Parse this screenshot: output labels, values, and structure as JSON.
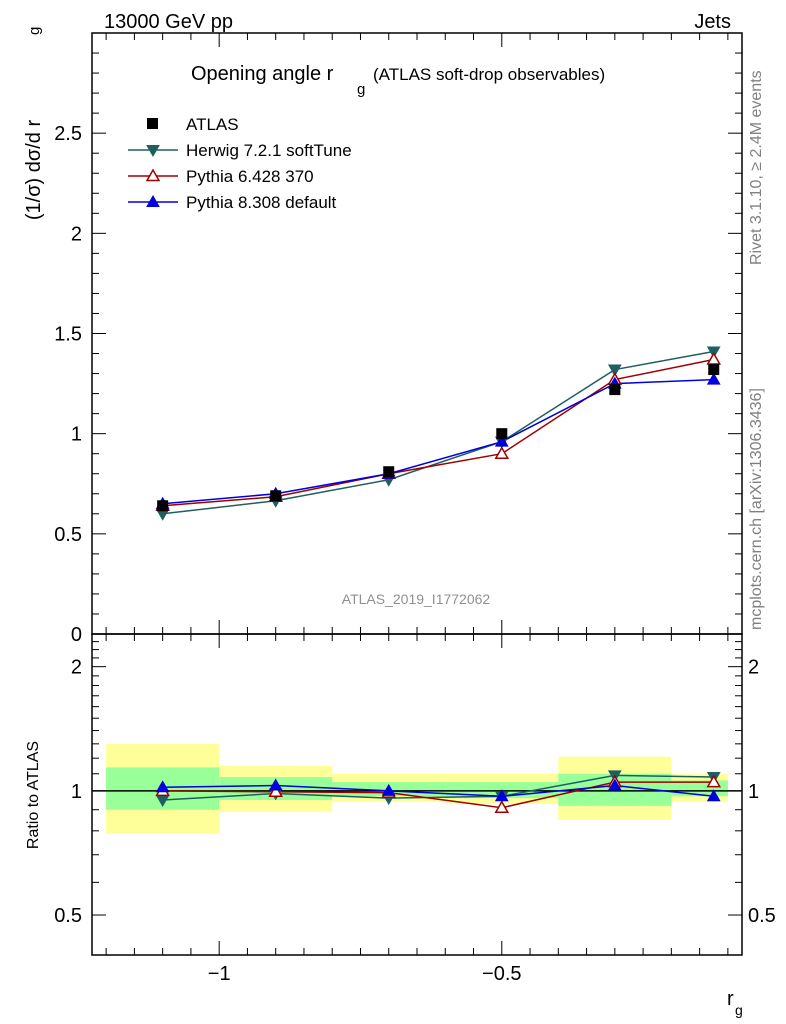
{
  "header": {
    "left": "13000 GeV pp",
    "right": "Jets"
  },
  "side_text": {
    "top": "Rivet 3.1.10, ≥ 2.4M events",
    "bottom": "mcplots.cern.ch [arXiv:1306.3436]"
  },
  "watermark": "ATLAS_2019_I1772062",
  "chart_data": [
    {
      "type": "line",
      "title_main": "Opening angle r",
      "title_sub": "g",
      "title_paren": "(ATLAS soft-drop observables)",
      "ylabel": "(1/σ) dσ/d r",
      "ylabel_sub": "g",
      "xlim": [
        -1.225,
        -0.075
      ],
      "ylim": [
        0,
        3.0
      ],
      "yticks": [
        {
          "v": 0.5,
          "label": "0.5"
        },
        {
          "v": 1.0,
          "label": "1"
        },
        {
          "v": 1.5,
          "label": "1.5"
        },
        {
          "v": 2.0,
          "label": "2"
        },
        {
          "v": 2.5,
          "label": "2.5"
        }
      ],
      "x": [
        -1.1,
        -0.9,
        -0.7,
        -0.5,
        -0.3,
        -0.125
      ],
      "data": {
        "name": "ATLAS",
        "values": [
          0.64,
          0.69,
          0.81,
          1.0,
          1.22,
          1.32
        ]
      },
      "series": [
        {
          "name": "Herwig 7.2.1 softTune",
          "color": "#1f5f5f",
          "marker": "triangle-down-filled",
          "values": [
            0.6,
            0.665,
            0.77,
            0.96,
            1.32,
            1.41
          ]
        },
        {
          "name": "Pythia 6.428 370",
          "color": "#a00000",
          "marker": "triangle-up-open",
          "values": [
            0.64,
            0.685,
            0.8,
            0.9,
            1.27,
            1.37
          ]
        },
        {
          "name": "Pythia 8.308 default",
          "color": "#0000dd",
          "marker": "triangle-up-filled",
          "values": [
            0.65,
            0.7,
            0.8,
            0.96,
            1.25,
            1.27
          ]
        }
      ],
      "legend_position": "top-left"
    },
    {
      "type": "line",
      "ylabel": "Ratio to ATLAS",
      "xlabel": "r",
      "xlabel_sub": "g",
      "xlim": [
        -1.225,
        -0.075
      ],
      "ylim": [
        0.4,
        2.4
      ],
      "log_y": true,
      "yticks": [
        {
          "v": 0.5,
          "label": "0.5"
        },
        {
          "v": 1.0,
          "label": "1"
        },
        {
          "v": 2.0,
          "label": "2"
        }
      ],
      "xticks": [
        {
          "v": -1.0,
          "label": "−1"
        },
        {
          "v": -0.5,
          "label": "−0.5"
        }
      ],
      "bands": [
        {
          "x0": -1.2,
          "x1": -1.0,
          "yellow": [
            0.79,
            1.3
          ],
          "green": [
            0.9,
            1.14
          ]
        },
        {
          "x0": -1.0,
          "x1": -0.8,
          "yellow": [
            0.89,
            1.15
          ],
          "green": [
            0.95,
            1.08
          ]
        },
        {
          "x0": -0.8,
          "x1": -0.6,
          "yellow": [
            0.94,
            1.1
          ],
          "green": [
            0.97,
            1.05
          ]
        },
        {
          "x0": -0.6,
          "x1": -0.4,
          "yellow": [
            0.93,
            1.1
          ],
          "green": [
            0.96,
            1.05
          ]
        },
        {
          "x0": -0.4,
          "x1": -0.2,
          "yellow": [
            0.85,
            1.21
          ],
          "green": [
            0.92,
            1.1
          ]
        },
        {
          "x0": -0.2,
          "x1": -0.1,
          "yellow": [
            0.94,
            1.1
          ],
          "green": [
            0.97,
            1.06
          ]
        }
      ],
      "x": [
        -1.1,
        -0.9,
        -0.7,
        -0.5,
        -0.3,
        -0.125
      ],
      "series": [
        {
          "name": "Herwig 7.2.1 softTune",
          "color": "#1f5f5f",
          "marker": "triangle-down-filled",
          "values": [
            0.95,
            0.985,
            0.96,
            0.97,
            1.09,
            1.08
          ]
        },
        {
          "name": "Pythia 6.428 370",
          "color": "#a00000",
          "marker": "triangle-up-open",
          "values": [
            1.0,
            0.995,
            0.99,
            0.91,
            1.05,
            1.05
          ]
        },
        {
          "name": "Pythia 8.308 default",
          "color": "#0000dd",
          "marker": "triangle-up-filled",
          "values": [
            1.02,
            1.03,
            1.0,
            0.97,
            1.03,
            0.97
          ]
        }
      ]
    }
  ]
}
